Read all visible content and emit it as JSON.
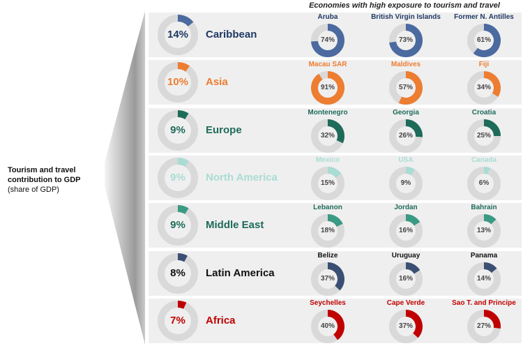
{
  "header": "Economies with high exposure to tourism and travel",
  "side_label": {
    "line1": "Tourism and travel",
    "line2": "contribution to GDP",
    "line3": "(share of GDP)"
  },
  "chart_data": {
    "type": "donut",
    "title": "Tourism and travel contribution to GDP",
    "subtitle": "(share of GDP)",
    "track_color": "#d9d9d9",
    "regions": [
      {
        "name": "Caribbean",
        "value": 14,
        "label": "14%",
        "color": "#4a6aa0",
        "text_color": "#1f3864",
        "economies": [
          {
            "name": "Aruba",
            "value": 74,
            "label": "74%"
          },
          {
            "name": "British Virgin Islands",
            "value": 73,
            "label": "73%"
          },
          {
            "name": "Former N. Antilles",
            "value": 61,
            "label": "61%"
          }
        ]
      },
      {
        "name": "Asia",
        "value": 10,
        "label": "10%",
        "color": "#ed7d31",
        "text_color": "#ed7d31",
        "economies": [
          {
            "name": "Macau SAR",
            "value": 91,
            "label": "91%"
          },
          {
            "name": "Maldives",
            "value": 57,
            "label": "57%"
          },
          {
            "name": "Fiji",
            "value": 34,
            "label": "34%"
          }
        ]
      },
      {
        "name": "Europe",
        "value": 9,
        "label": "9%",
        "color": "#1e6b5a",
        "text_color": "#1e6b5a",
        "economies": [
          {
            "name": "Montenegro",
            "value": 32,
            "label": "32%"
          },
          {
            "name": "Georgia",
            "value": 26,
            "label": "26%"
          },
          {
            "name": "Croatia",
            "value": 25,
            "label": "25%"
          }
        ]
      },
      {
        "name": "North America",
        "value": 9,
        "label": "9%",
        "color": "#a9dcd3",
        "text_color": "#a9dcd3",
        "economies": [
          {
            "name": "Mexico",
            "value": 15,
            "label": "15%"
          },
          {
            "name": "USA",
            "value": 9,
            "label": "9%"
          },
          {
            "name": "Canada",
            "value": 6,
            "label": "6%"
          }
        ]
      },
      {
        "name": "Middle East",
        "value": 9,
        "label": "9%",
        "color": "#3b9a84",
        "text_color": "#1e6b5a",
        "economies": [
          {
            "name": "Lebanon",
            "value": 18,
            "label": "18%"
          },
          {
            "name": "Jordan",
            "value": 16,
            "label": "16%"
          },
          {
            "name": "Bahrain",
            "value": 13,
            "label": "13%"
          }
        ]
      },
      {
        "name": "Latin America",
        "value": 8,
        "label": "8%",
        "color": "#3a4f73",
        "text_color": "#111111",
        "economies": [
          {
            "name": "Belize",
            "value": 37,
            "label": "37%"
          },
          {
            "name": "Uruguay",
            "value": 16,
            "label": "16%"
          },
          {
            "name": "Panama",
            "value": 14,
            "label": "14%"
          }
        ]
      },
      {
        "name": "Africa",
        "value": 7,
        "label": "7%",
        "color": "#c00000",
        "text_color": "#c00000",
        "economies": [
          {
            "name": "Seychelles",
            "value": 40,
            "label": "40%"
          },
          {
            "name": "Cape Verde",
            "value": 37,
            "label": "37%"
          },
          {
            "name": "Sao T. and Principe",
            "value": 27,
            "label": "27%"
          }
        ]
      }
    ]
  }
}
